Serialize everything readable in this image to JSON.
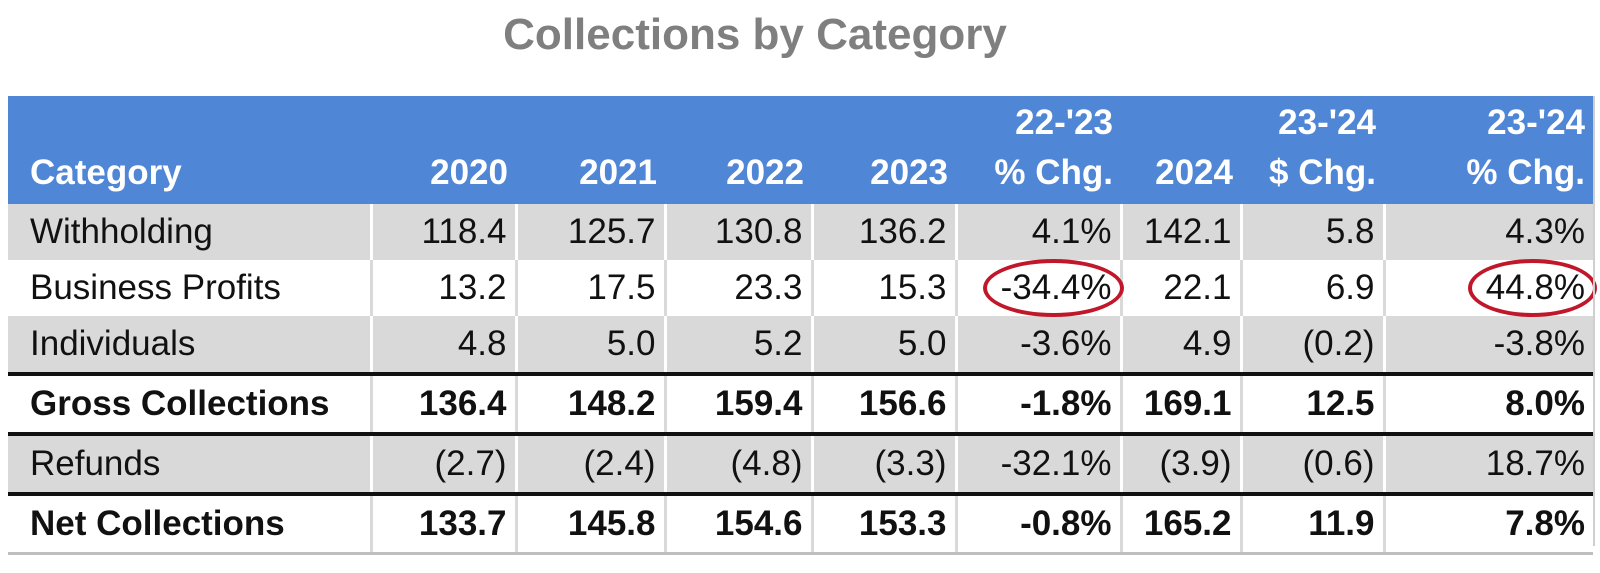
{
  "chart_data": {
    "type": "table",
    "title": "Collections by Category",
    "columns": [
      {
        "line1": "",
        "line2": "Category"
      },
      {
        "line1": "",
        "line2": "2020"
      },
      {
        "line1": "",
        "line2": "2021"
      },
      {
        "line1": "",
        "line2": "2022"
      },
      {
        "line1": "",
        "line2": "2023"
      },
      {
        "line1": "22-'23",
        "line2": "% Chg."
      },
      {
        "line1": "",
        "line2": "2024"
      },
      {
        "line1": "23-'24",
        "line2": "$ Chg."
      },
      {
        "line1": "23-'24",
        "line2": "% Chg."
      }
    ],
    "rows": [
      {
        "category": "Withholding",
        "values": [
          "118.4",
          "125.7",
          "130.8",
          "136.2",
          "4.1%",
          "142.1",
          "5.8",
          "4.3%"
        ]
      },
      {
        "category": "Business Profits",
        "values": [
          "13.2",
          "17.5",
          "23.3",
          "15.3",
          "-34.4%",
          "22.1",
          "6.9",
          "44.8%"
        ]
      },
      {
        "category": "Individuals",
        "values": [
          "4.8",
          "5.0",
          "5.2",
          "5.0",
          "-3.6%",
          "4.9",
          "(0.2)",
          "-3.8%"
        ]
      },
      {
        "category": "Gross Collections",
        "values": [
          "136.4",
          "148.2",
          "159.4",
          "156.6",
          "-1.8%",
          "169.1",
          "12.5",
          "8.0%"
        ]
      },
      {
        "category": "Refunds",
        "values": [
          "(2.7)",
          "(2.4)",
          "(4.8)",
          "(3.3)",
          "-32.1%",
          "(3.9)",
          "(0.6)",
          "18.7%"
        ]
      },
      {
        "category": "Net Collections",
        "values": [
          "133.7",
          "145.8",
          "154.6",
          "153.3",
          "-0.8%",
          "165.2",
          "11.9",
          "7.8%"
        ]
      }
    ],
    "highlight_color": "#c0182a",
    "header_color": "#4f86d6",
    "stripe_color": "#d9d9d9"
  }
}
